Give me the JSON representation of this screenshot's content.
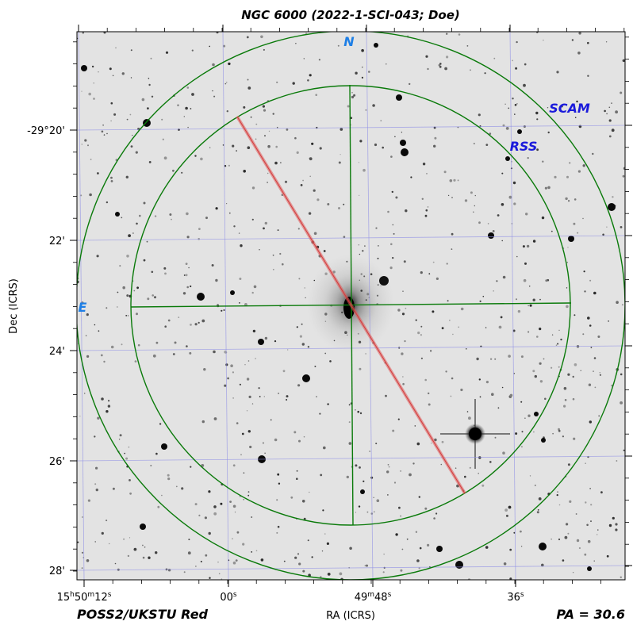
{
  "title": "NGC 6000 (2022-1-SCI-043; Doe)",
  "survey_label": "POSS2/UKSTU Red",
  "position_angle_label": "PA = 30.6",
  "axes": {
    "xlabel": "RA (ICRS)",
    "ylabel": "Dec (ICRS)",
    "ra_ticks": [
      {
        "label": "15h50m12s",
        "ra_sec": 12
      },
      {
        "label": "00s",
        "ra_sec": 0
      },
      {
        "label": "49m48s",
        "ra_sec": -12
      },
      {
        "label": "36s",
        "ra_sec": -24
      }
    ],
    "dec_ticks": [
      {
        "label": "-29°20'",
        "arcmin": 20
      },
      {
        "label": "22'",
        "arcmin": 22
      },
      {
        "label": "24'",
        "arcmin": 24
      },
      {
        "label": "26'",
        "arcmin": 26
      },
      {
        "label": "28'",
        "arcmin": 28
      }
    ]
  },
  "compass": {
    "north": "N",
    "east": "E",
    "color": "#1e7fe6"
  },
  "instruments": {
    "scam": {
      "label": "SCAM",
      "color": "#1a1adb"
    },
    "rss": {
      "label": "RSS",
      "color": "#1a1adb"
    }
  },
  "colors": {
    "overlay": "#0a7a0a",
    "slit": "#e05a5a",
    "grid": "#9090e6",
    "sky": "#e3e3e3"
  }
}
